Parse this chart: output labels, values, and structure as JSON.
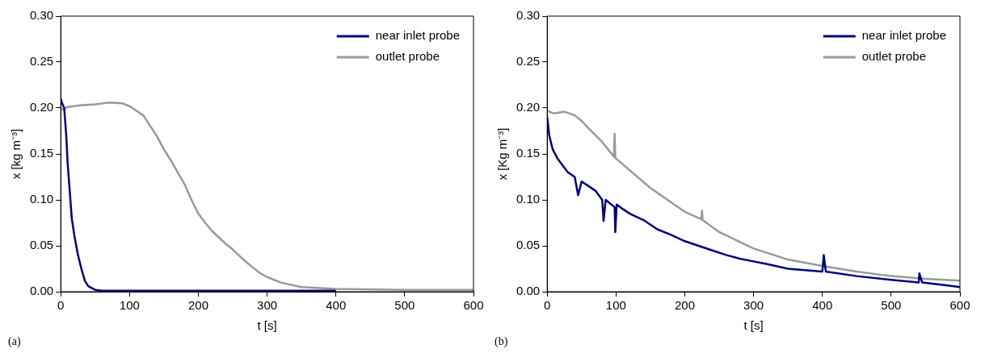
{
  "chart_data": [
    {
      "type": "line",
      "xlabel": "t [s]",
      "ylabel": "x [kg m⁻³]",
      "annotations": [
        "(a)"
      ],
      "xlim": [
        0,
        600
      ],
      "xticks": [
        0,
        100,
        200,
        300,
        400,
        500,
        600
      ],
      "ylim": [
        0,
        0.3
      ],
      "yticks": [
        {
          "value": 0,
          "label": "0.00"
        },
        0.05,
        {
          "value": 0.1,
          "label": "0.10"
        },
        0.15,
        {
          "value": 0.2,
          "label": "0.20"
        },
        0.25,
        {
          "value": 0.3,
          "label": "0.30"
        }
      ],
      "grid": false,
      "legend": "top right",
      "marker": "none",
      "line_style": "solid",
      "series": [
        {
          "name": "near inlet probe",
          "color": "#000080",
          "x": [
            0,
            2,
            5,
            8,
            10,
            13,
            16,
            20,
            25,
            30,
            35,
            40,
            50,
            60,
            100,
            200,
            300,
            400
          ],
          "values": [
            0.21,
            0.205,
            0.2,
            0.17,
            0.14,
            0.11,
            0.08,
            0.06,
            0.04,
            0.025,
            0.012,
            0.006,
            0.002,
            0.001,
            0.001,
            0.001,
            0.001,
            0.001
          ]
        },
        {
          "name": "outlet probe",
          "color": "#999999",
          "x": [
            0,
            10,
            30,
            50,
            70,
            90,
            100,
            120,
            140,
            150,
            160,
            170,
            180,
            190,
            200,
            210,
            220,
            230,
            240,
            250,
            260,
            270,
            280,
            290,
            300,
            320,
            350,
            400,
            500,
            600
          ],
          "values": [
            0.198,
            0.201,
            0.203,
            0.204,
            0.206,
            0.205,
            0.202,
            0.192,
            0.169,
            0.155,
            0.143,
            0.13,
            0.117,
            0.1,
            0.085,
            0.075,
            0.066,
            0.059,
            0.052,
            0.046,
            0.039,
            0.032,
            0.026,
            0.02,
            0.016,
            0.01,
            0.005,
            0.003,
            0.002,
            0.002
          ]
        }
      ]
    },
    {
      "type": "line",
      "xlabel": "t [s]",
      "ylabel": "x [Kg m⁻³]",
      "annotations": [
        "(b)"
      ],
      "xlim": [
        0,
        600
      ],
      "xticks": [
        0,
        100,
        200,
        300,
        400,
        500,
        600
      ],
      "ylim": [
        0,
        0.3
      ],
      "yticks": [
        {
          "value": 0,
          "label": "0.00"
        },
        0.05,
        {
          "value": 0.1,
          "label": "0.10"
        },
        0.15,
        {
          "value": 0.2,
          "label": "0.20"
        },
        0.25,
        {
          "value": 0.3,
          "label": "0.30"
        }
      ],
      "grid": false,
      "legend": "top right",
      "marker": "none",
      "line_style": "solid",
      "series": [
        {
          "name": "near inlet probe",
          "color": "#000080",
          "x": [
            0,
            3,
            8,
            15,
            20,
            30,
            40,
            45,
            50,
            60,
            70,
            80,
            82,
            85,
            98,
            99,
            101,
            110,
            120,
            140,
            160,
            180,
            200,
            220,
            240,
            260,
            280,
            300,
            320,
            350,
            400,
            402,
            405,
            450,
            500,
            540,
            541,
            545,
            580,
            600
          ],
          "values": [
            0.19,
            0.17,
            0.155,
            0.145,
            0.14,
            0.13,
            0.125,
            0.105,
            0.12,
            0.115,
            0.11,
            0.1,
            0.077,
            0.1,
            0.092,
            0.065,
            0.095,
            0.09,
            0.085,
            0.078,
            0.068,
            0.062,
            0.055,
            0.05,
            0.045,
            0.04,
            0.036,
            0.033,
            0.03,
            0.025,
            0.022,
            0.04,
            0.022,
            0.017,
            0.013,
            0.01,
            0.02,
            0.01,
            0.007,
            0.005
          ]
        },
        {
          "name": "outlet probe",
          "color": "#999999",
          "x": [
            0,
            10,
            25,
            40,
            50,
            60,
            80,
            97,
            98,
            99,
            100,
            150,
            200,
            224,
            225,
            226,
            250,
            300,
            350,
            400,
            450,
            500,
            550,
            600
          ],
          "values": [
            0.197,
            0.194,
            0.196,
            0.192,
            0.186,
            0.178,
            0.163,
            0.147,
            0.172,
            0.146,
            0.145,
            0.113,
            0.087,
            0.079,
            0.088,
            0.078,
            0.065,
            0.047,
            0.035,
            0.028,
            0.022,
            0.017,
            0.014,
            0.012
          ]
        }
      ]
    }
  ]
}
